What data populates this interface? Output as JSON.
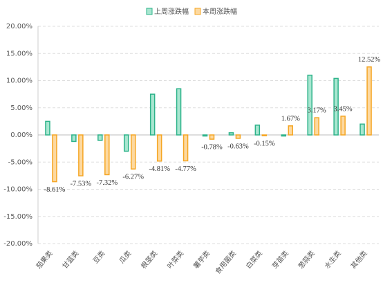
{
  "chart_data": {
    "type": "bar",
    "categories": [
      "茄果类",
      "甘蓝类",
      "豆类",
      "瓜类",
      "根茎类",
      "叶菜类",
      "薯芋类",
      "食用菌类",
      "白菜类",
      "芽苗类",
      "葱蒜类",
      "水生类",
      "其他类"
    ],
    "series": [
      {
        "name": "上周涨跌幅",
        "color": "#2db38a",
        "fill": "#a8e6d0",
        "values": [
          2.5,
          -1.2,
          -1.0,
          -3.0,
          7.5,
          8.5,
          -0.2,
          0.4,
          1.8,
          -0.2,
          11.0,
          10.4,
          2.0
        ]
      },
      {
        "name": "本周涨跌幅",
        "color": "#f5a623",
        "fill": "#fdd9a0",
        "values": [
          -8.61,
          -7.53,
          -7.32,
          -6.27,
          -4.81,
          -4.77,
          -0.78,
          -0.63,
          -0.15,
          1.67,
          3.17,
          3.45,
          12.52
        ],
        "value_labels": [
          "-8.61%",
          "-7.53%",
          "-7.32%",
          "-6.27%",
          "-4.81%",
          "-4.77%",
          "-0.78%",
          "-0.63%",
          "-0.15%",
          "1.67%",
          "3.17%",
          "3.45%",
          "12.52%"
        ]
      }
    ],
    "ylim": [
      -20,
      20
    ],
    "yticks": [
      {
        "value": -20,
        "label": "-20.00%"
      },
      {
        "value": -15,
        "label": "-15.00%"
      },
      {
        "value": -10,
        "label": "-10.00%"
      },
      {
        "value": -5,
        "label": "-5.00%"
      },
      {
        "value": 0,
        "label": "0.00%"
      },
      {
        "value": 5,
        "label": "5.00%"
      },
      {
        "value": 10,
        "label": "10.00%"
      },
      {
        "value": 15,
        "label": "15.00%"
      },
      {
        "value": 20,
        "label": "20.00%"
      }
    ],
    "grid": true,
    "legend": "top"
  }
}
